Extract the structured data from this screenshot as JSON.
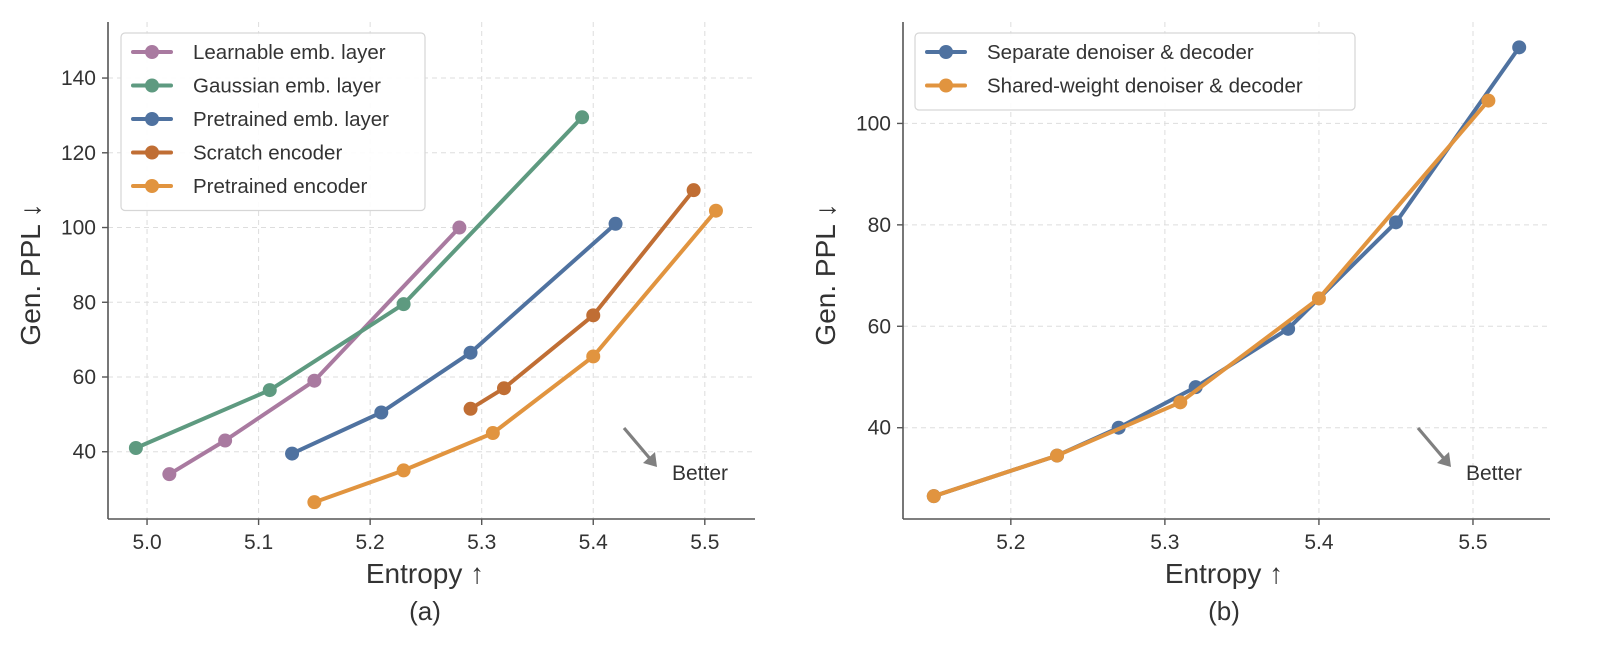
{
  "chart_data": [
    {
      "type": "line",
      "panel_label": "(a)",
      "title": "",
      "xlabel": "Entropy",
      "xlabel_arrow": "↑",
      "ylabel": "Gen. PPL",
      "ylabel_arrow": "↓",
      "xlim": [
        4.965,
        5.545
      ],
      "ylim": [
        22,
        155
      ],
      "xticks": [
        5.0,
        5.1,
        5.2,
        5.3,
        5.4,
        5.5
      ],
      "xtick_labels": [
        "5.0",
        "5.1",
        "5.2",
        "5.3",
        "5.4",
        "5.5"
      ],
      "yticks": [
        40,
        60,
        80,
        100,
        120,
        140
      ],
      "ytick_labels": [
        "40",
        "60",
        "80",
        "100",
        "120",
        "140"
      ],
      "grid": true,
      "legend_position": "top-left",
      "annotation": {
        "text": "Better",
        "arrow_direction": "down-right"
      },
      "series": [
        {
          "name": "Learnable emb. layer",
          "color": "#a97aa0",
          "x": [
            5.02,
            5.07,
            5.15,
            5.28
          ],
          "y": [
            34,
            43,
            59,
            100
          ]
        },
        {
          "name": "Gaussian emb. layer",
          "color": "#5e9a80",
          "x": [
            4.99,
            5.11,
            5.23,
            5.39
          ],
          "y": [
            41,
            56.5,
            79.5,
            129.5
          ]
        },
        {
          "name": "Pretrained emb. layer",
          "color": "#4f72a0",
          "x": [
            5.13,
            5.21,
            5.29,
            5.42
          ],
          "y": [
            39.5,
            50.5,
            66.5,
            101
          ]
        },
        {
          "name": "Scratch encoder",
          "color": "#c06e34",
          "x": [
            5.29,
            5.32,
            5.4,
            5.49
          ],
          "y": [
            51.5,
            57,
            76.5,
            110
          ]
        },
        {
          "name": "Pretrained encoder",
          "color": "#e1943f",
          "x": [
            5.15,
            5.23,
            5.31,
            5.4,
            5.51
          ],
          "y": [
            26.5,
            35,
            45,
            65.5,
            104.5
          ]
        }
      ]
    },
    {
      "type": "line",
      "panel_label": "(b)",
      "title": "",
      "xlabel": "Entropy",
      "xlabel_arrow": "↑",
      "ylabel": "Gen. PPL",
      "ylabel_arrow": "↓",
      "xlim": [
        5.13,
        5.55
      ],
      "ylim": [
        22,
        120
      ],
      "xticks": [
        5.2,
        5.3,
        5.4,
        5.5
      ],
      "xtick_labels": [
        "5.2",
        "5.3",
        "5.4",
        "5.5"
      ],
      "yticks": [
        40,
        60,
        80,
        100
      ],
      "ytick_labels": [
        "40",
        "60",
        "80",
        "100"
      ],
      "grid": true,
      "legend_position": "top-left",
      "annotation": {
        "text": "Better",
        "arrow_direction": "down-right"
      },
      "series": [
        {
          "name": "Separate denoiser & decoder",
          "color": "#4f72a0",
          "x": [
            5.15,
            5.23,
            5.27,
            5.32,
            5.38,
            5.45,
            5.53
          ],
          "y": [
            26.5,
            34.5,
            40,
            48,
            59.5,
            80.5,
            115
          ]
        },
        {
          "name": "Shared-weight denoiser & decoder",
          "color": "#e1943f",
          "x": [
            5.15,
            5.23,
            5.31,
            5.4,
            5.51
          ],
          "y": [
            26.5,
            34.5,
            45,
            65.5,
            104.5
          ]
        }
      ]
    }
  ]
}
